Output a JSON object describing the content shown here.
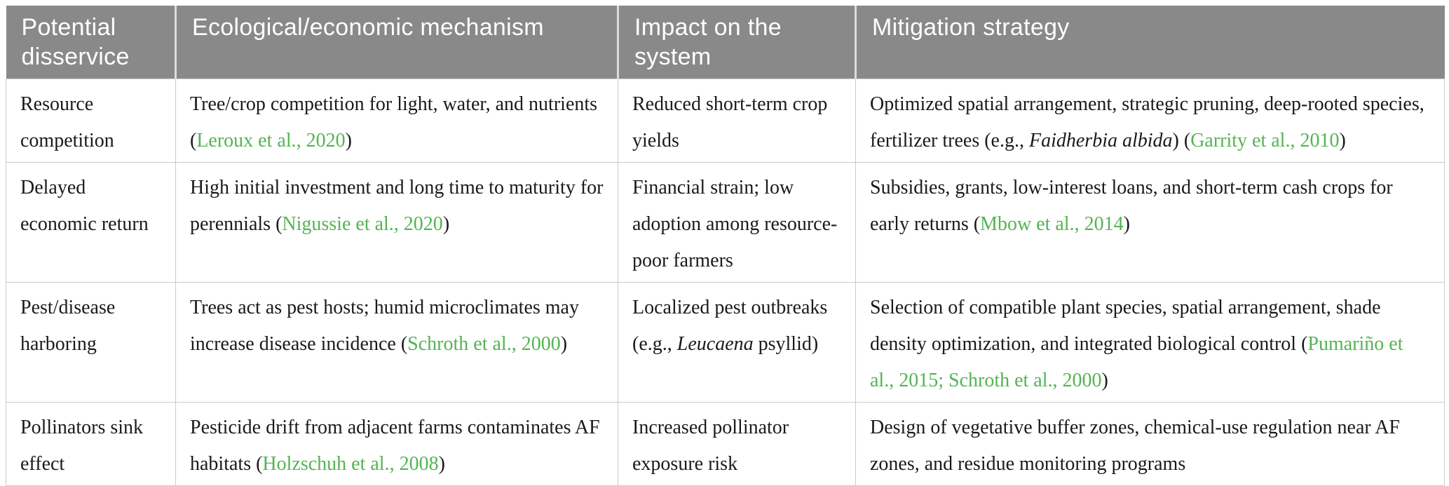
{
  "colors": {
    "header_bg": "#898989",
    "header_text": "#ffffff",
    "link_green": "#53b453",
    "border": "#cbcbcb",
    "body_text": "#1a1a1a"
  },
  "table": {
    "headers": [
      "Potential disservice",
      "Ecological/economic mechanism",
      "Impact on the system",
      "Mitigation strategy"
    ],
    "rows": [
      {
        "cells": [
          [
            {
              "t": "Resource competition"
            }
          ],
          [
            {
              "t": "Tree/crop competition for light, water, and nutrients ("
            },
            {
              "t": "Leroux et al., 2020",
              "s": "link"
            },
            {
              "t": ")"
            }
          ],
          [
            {
              "t": "Reduced short-term crop yields"
            }
          ],
          [
            {
              "t": "Optimized spatial arrangement, strategic pruning, deep-rooted species, fertilizer trees (e.g., "
            },
            {
              "t": "Faidherbia albida",
              "s": "italic"
            },
            {
              "t": ") ("
            },
            {
              "t": "Garrity et al., 2010",
              "s": "link"
            },
            {
              "t": ")"
            }
          ]
        ]
      },
      {
        "cells": [
          [
            {
              "t": "Delayed economic return"
            }
          ],
          [
            {
              "t": "High initial investment and long time to maturity for perennials ("
            },
            {
              "t": "Nigussie et al., 2020",
              "s": "link"
            },
            {
              "t": ")"
            }
          ],
          [
            {
              "t": "Financial strain; low adoption among resource-poor farmers"
            }
          ],
          [
            {
              "t": "Subsidies, grants, low-interest loans, and short-term cash crops for early returns ("
            },
            {
              "t": "Mbow et al., 2014",
              "s": "link"
            },
            {
              "t": ")"
            }
          ]
        ]
      },
      {
        "cells": [
          [
            {
              "t": "Pest/disease harboring"
            }
          ],
          [
            {
              "t": "Trees act as pest hosts; humid microclimates may increase disease incidence ("
            },
            {
              "t": "Schroth et al., 2000",
              "s": "link"
            },
            {
              "t": ")"
            }
          ],
          [
            {
              "t": "Localized pest outbreaks (e.g., "
            },
            {
              "t": "Leucaena",
              "s": "italic"
            },
            {
              "t": " psyllid)"
            }
          ],
          [
            {
              "t": "Selection of compatible plant species, spatial arrangement, shade density optimization, and integrated biological control ("
            },
            {
              "t": "Pumariño et al., 2015; ",
              "s": "link"
            },
            {
              "t": "Schroth et al., 2000",
              "s": "link"
            },
            {
              "t": ")"
            }
          ]
        ]
      },
      {
        "cells": [
          [
            {
              "t": "Pollinators sink effect"
            }
          ],
          [
            {
              "t": "Pesticide drift from adjacent farms contaminates AF habitats ("
            },
            {
              "t": "Holzschuh et al., 2008",
              "s": "link"
            },
            {
              "t": ")"
            }
          ],
          [
            {
              "t": "Increased pollinator exposure risk"
            }
          ],
          [
            {
              "t": "Design of vegetative buffer zones, chemical-use regulation near AF zones, and residue monitoring programs"
            }
          ]
        ]
      }
    ]
  }
}
